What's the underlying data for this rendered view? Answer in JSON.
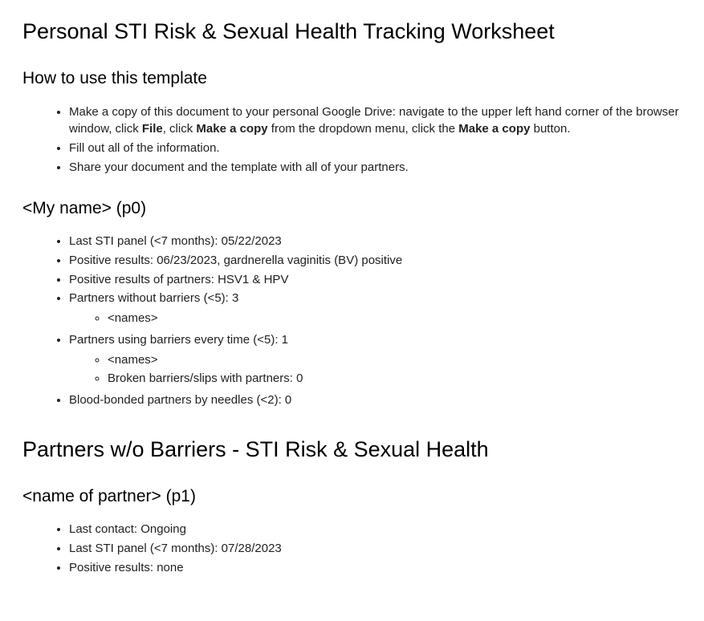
{
  "doc": {
    "title": "Personal STI Risk & Sexual Health Tracking Worksheet",
    "howto_heading": "How to use this template",
    "howto": {
      "item1_pre": "Make a copy of this document to your personal Google Drive: navigate to the upper left hand corner of the browser window, click ",
      "item1_b1": "File",
      "item1_mid1": ", click ",
      "item1_b2": "Make a copy",
      "item1_mid2": " from the dropdown menu, click the ",
      "item1_b3": "Make a copy",
      "item1_post": " button.",
      "item2": "Fill out all of the information.",
      "item3": "Share your document and the template with all of your partners."
    },
    "p0": {
      "heading": "<My name> (p0)",
      "last_panel": "Last STI panel (<7 months): 05/22/2023",
      "positive": "Positive results: 06/23/2023, gardnerella vaginitis (BV) positive",
      "partners_positive": "Positive results of partners: HSV1 & HPV",
      "partners_no_barriers": "Partners without barriers (<5): 3",
      "partners_no_barriers_sub1": "<names>",
      "partners_barriers": "Partners using barriers every time (<5): 1",
      "partners_barriers_sub1": "<names>",
      "partners_barriers_sub2": "Broken barriers/slips with partners: 0",
      "blood_bonded": "Blood-bonded partners by needles (<2): 0"
    },
    "partners_section_title": "Partners w/o Barriers - STI Risk & Sexual Health",
    "p1": {
      "heading": "<name of partner> (p1)",
      "last_contact": "Last contact: Ongoing",
      "last_panel": "Last STI panel (<7 months): 07/28/2023",
      "positive": "Positive results: none"
    }
  }
}
